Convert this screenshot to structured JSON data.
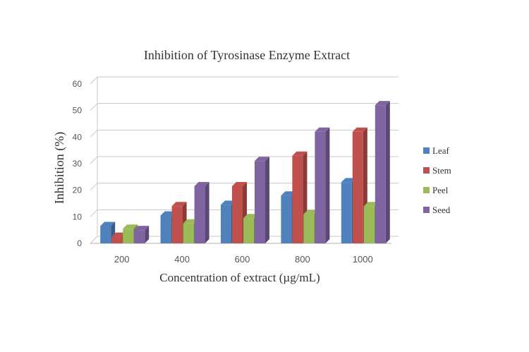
{
  "chart_data": {
    "type": "bar",
    "title": "Inhibition of Tyrosinase Enzyme Extract",
    "xlabel": "Concentration of extract (µg/mL)",
    "ylabel": "Inhibition (%)",
    "categories": [
      "200",
      "400",
      "600",
      "800",
      "1000"
    ],
    "ylim": [
      0,
      60
    ],
    "yticks": [
      "0",
      "10",
      "20",
      "30",
      "40",
      "50",
      "60"
    ],
    "grid": true,
    "legend_position": "right",
    "series": [
      {
        "name": "Leaf",
        "color": "#4f81bd",
        "values": [
          6.5,
          10.5,
          14.5,
          18,
          23
        ]
      },
      {
        "name": "Stem",
        "color": "#c0504d",
        "values": [
          2.5,
          14,
          21.5,
          33,
          42
        ]
      },
      {
        "name": "Peel",
        "color": "#9bbb59",
        "values": [
          5.5,
          7.5,
          9.5,
          11,
          14
        ]
      },
      {
        "name": "Seed",
        "color": "#8064a2",
        "values": [
          5,
          21.5,
          31,
          42,
          52
        ]
      }
    ]
  }
}
